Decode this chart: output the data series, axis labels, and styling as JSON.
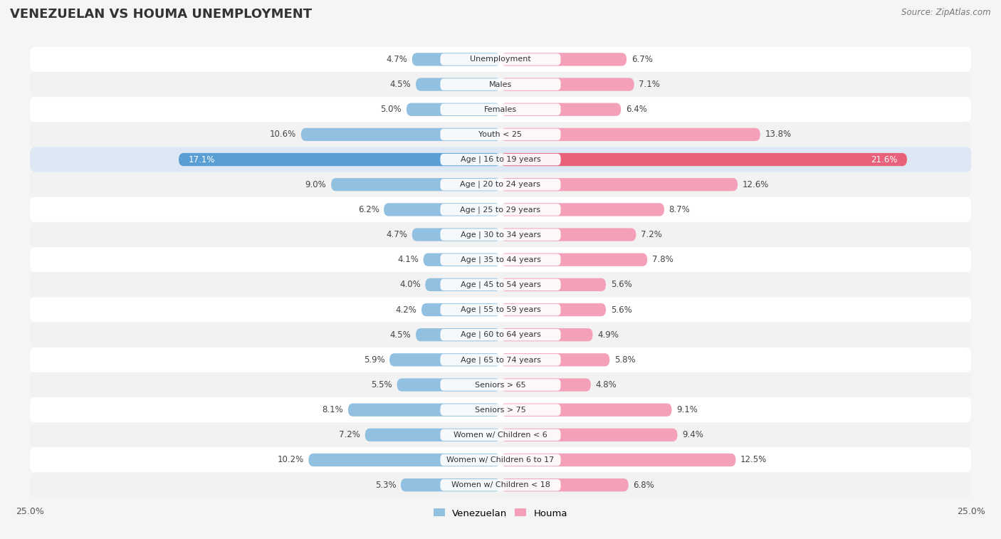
{
  "title": "VENEZUELAN VS HOUMA UNEMPLOYMENT",
  "source": "Source: ZipAtlas.com",
  "categories": [
    "Unemployment",
    "Males",
    "Females",
    "Youth < 25",
    "Age | 16 to 19 years",
    "Age | 20 to 24 years",
    "Age | 25 to 29 years",
    "Age | 30 to 34 years",
    "Age | 35 to 44 years",
    "Age | 45 to 54 years",
    "Age | 55 to 59 years",
    "Age | 60 to 64 years",
    "Age | 65 to 74 years",
    "Seniors > 65",
    "Seniors > 75",
    "Women w/ Children < 6",
    "Women w/ Children 6 to 17",
    "Women w/ Children < 18"
  ],
  "venezuelan": [
    4.7,
    4.5,
    5.0,
    10.6,
    17.1,
    9.0,
    6.2,
    4.7,
    4.1,
    4.0,
    4.2,
    4.5,
    5.9,
    5.5,
    8.1,
    7.2,
    10.2,
    5.3
  ],
  "houma": [
    6.7,
    7.1,
    6.4,
    13.8,
    21.6,
    12.6,
    8.7,
    7.2,
    7.8,
    5.6,
    5.6,
    4.9,
    5.8,
    4.8,
    9.1,
    9.4,
    12.5,
    6.8
  ],
  "venezuelan_color": "#92c0e0",
  "houma_color": "#f4a0b8",
  "highlight_venezuelan_color": "#5a9fd4",
  "highlight_houma_color": "#e8607a",
  "highlight_row_color": "#dde8f0",
  "row_color_odd": "#f2f2f2",
  "row_color_even": "#ffffff",
  "background_color": "#f5f5f5",
  "max_val": 25.0,
  "legend_venezuelan": "Venezuelan",
  "legend_houma": "Houma",
  "title_fontsize": 13,
  "label_fontsize": 8.5,
  "source_fontsize": 8.5
}
